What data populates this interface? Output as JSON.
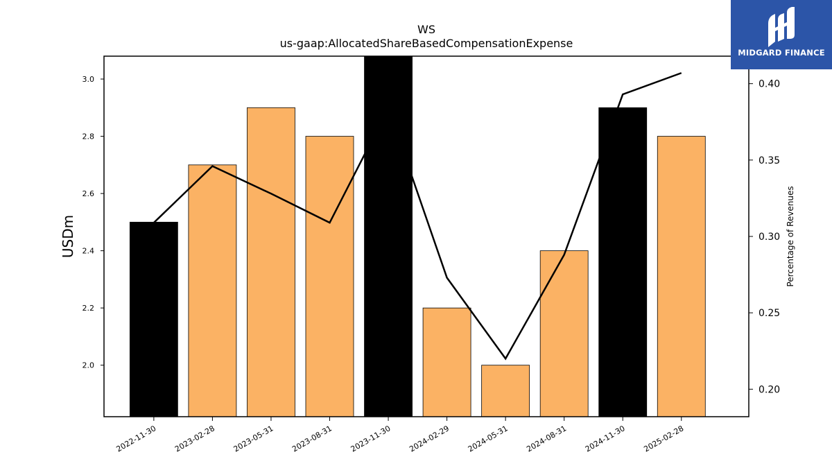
{
  "chart_data": {
    "type": "bar",
    "title": "WS",
    "subtitle": "us-gaap:AllocatedShareBasedCompensationExpense",
    "ylabel": "USDm",
    "y2label": "Percentage of Revenues",
    "categories": [
      "2022-11-30",
      "2023-02-28",
      "2023-05-31",
      "2023-08-31",
      "2023-11-30",
      "2024-02-29",
      "2024-05-31",
      "2024-08-31",
      "2024-11-30",
      "2025-02-28"
    ],
    "series": [
      {
        "kind": "bar",
        "axis": "left",
        "values": [
          2.5,
          2.7,
          2.9,
          2.8,
          3.1,
          2.2,
          2.0,
          2.4,
          2.9,
          2.8
        ],
        "colors": [
          "#000000",
          "#fbb264",
          "#fbb264",
          "#fbb264",
          "#000000",
          "#fbb264",
          "#fbb264",
          "#fbb264",
          "#000000",
          "#fbb264"
        ]
      },
      {
        "kind": "line",
        "axis": "right",
        "color": "#000000",
        "values": [
          0.309,
          0.346,
          0.328,
          0.309,
          0.384,
          0.273,
          0.22,
          0.288,
          0.393,
          0.407
        ]
      }
    ],
    "ylim": [
      1.82,
      3.08
    ],
    "y2lim": [
      0.182,
      0.418
    ],
    "yticks": [
      2.0,
      2.2,
      2.4,
      2.6,
      2.8,
      3.0
    ],
    "y2ticks": [
      0.2,
      0.25,
      0.3,
      0.35,
      0.4
    ],
    "grid": false
  },
  "logo": {
    "text": "MIDGARD FINANCE",
    "background": "#2c55a8"
  }
}
